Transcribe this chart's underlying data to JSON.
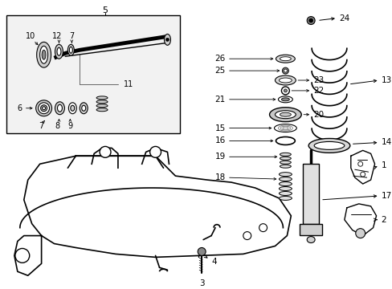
{
  "bg_color": "#ffffff",
  "line_color": "#000000",
  "gray_fill": "#c8c8c8",
  "light_gray": "#e8e8e8",
  "fig_width": 4.89,
  "fig_height": 3.6,
  "dpi": 100
}
